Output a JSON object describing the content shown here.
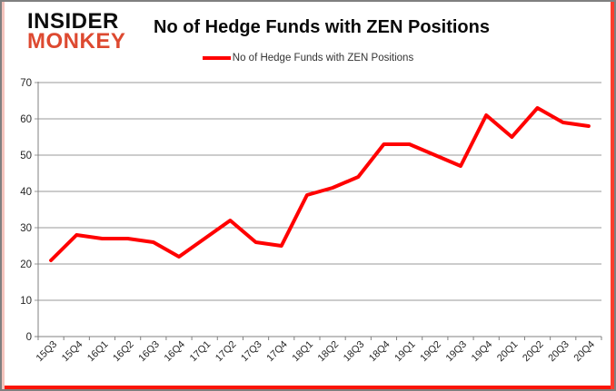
{
  "logo": {
    "line1": "INSIDER",
    "line2": "MONKEY",
    "brand_color": "#dd4930"
  },
  "header": {
    "title": "No of Hedge Funds with ZEN Positions"
  },
  "legend": {
    "label": "No of Hedge Funds with ZEN Positions",
    "line_color": "#ff0000"
  },
  "chart_data": {
    "type": "line",
    "title": "No of Hedge Funds with ZEN Positions",
    "categories": [
      "15Q3",
      "15Q4",
      "16Q1",
      "16Q2",
      "16Q3",
      "16Q4",
      "17Q1",
      "17Q2",
      "17Q3",
      "17Q4",
      "18Q1",
      "18Q2",
      "18Q3",
      "18Q4",
      "19Q1",
      "19Q2",
      "19Q3",
      "19Q4",
      "20Q1",
      "20Q2",
      "20Q3",
      "20Q4"
    ],
    "series": [
      {
        "name": "No of Hedge Funds with ZEN Positions",
        "color": "#ff0000",
        "values": [
          21,
          28,
          27,
          27,
          26,
          22,
          27,
          32,
          26,
          25,
          39,
          41,
          44,
          53,
          53,
          50,
          47,
          61,
          55,
          63,
          59,
          58
        ]
      }
    ],
    "xlabel": "",
    "ylabel": "",
    "ylim": [
      0,
      70
    ],
    "yticks": [
      0,
      10,
      20,
      30,
      40,
      50,
      60,
      70
    ],
    "grid": true,
    "legend_position": "top",
    "gridline_color": "#999999",
    "axis_color": "#808080",
    "tick_label_color": "#262626"
  }
}
